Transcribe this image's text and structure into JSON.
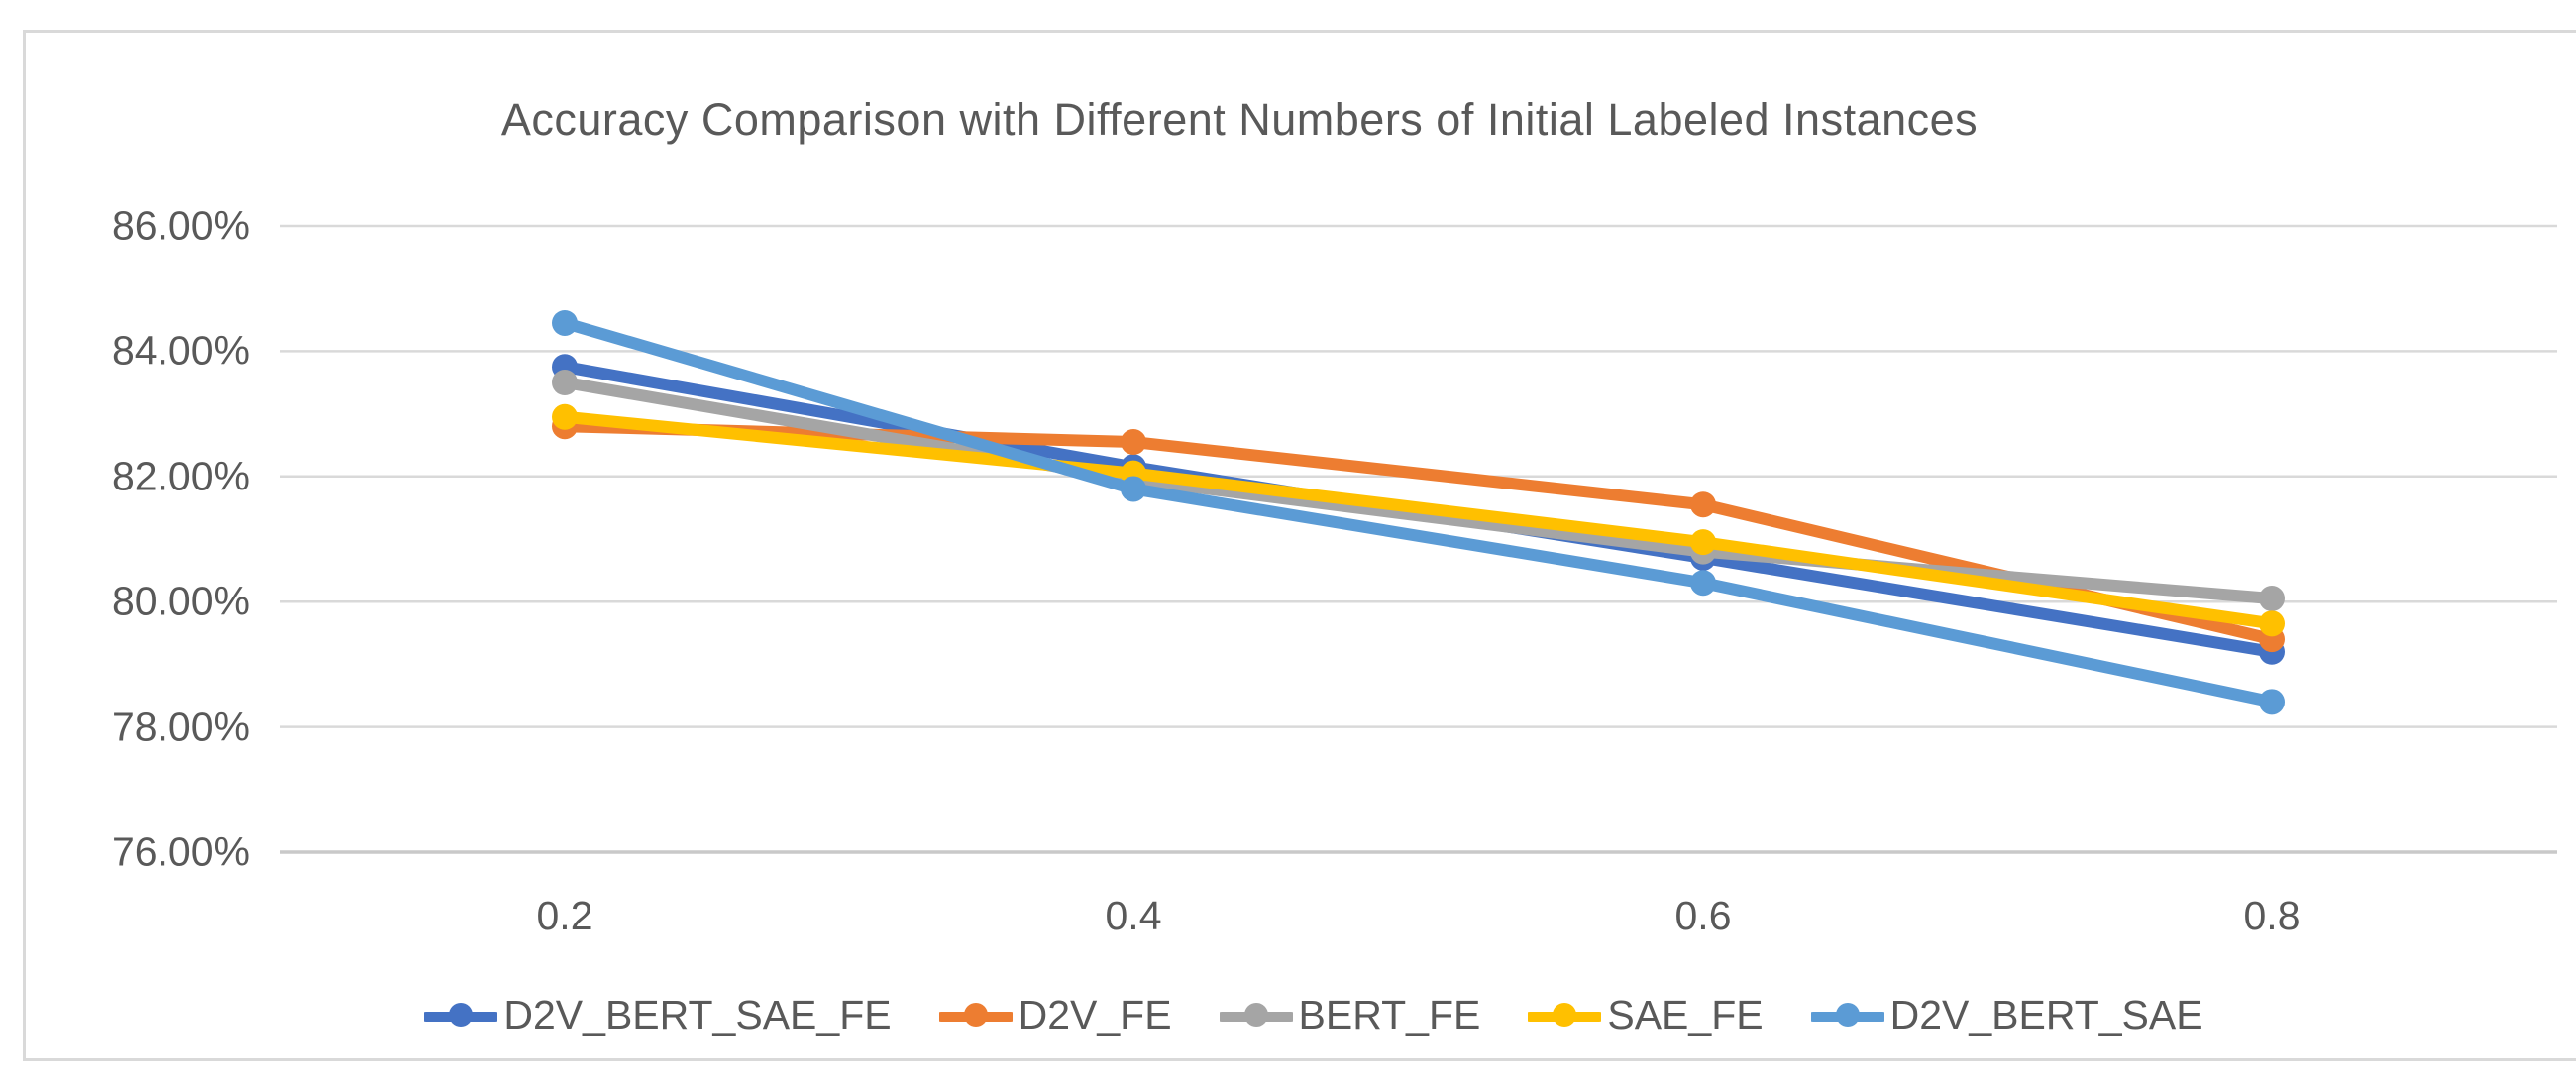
{
  "window": {
    "background_color": "#ffffff",
    "card_border_color": "#d9d9d9"
  },
  "chart_data": {
    "type": "line",
    "title": "Accuracy Comparison with Different Numbers of Initial Labeled Instances",
    "xlabel": "",
    "ylabel": "",
    "categories": [
      "0.2",
      "0.4",
      "0.6",
      "0.8"
    ],
    "series": [
      {
        "name": "D2V_BERT_SAE_FE",
        "color": "#4472C4",
        "values": [
          83.75,
          82.15,
          80.7,
          79.2
        ]
      },
      {
        "name": "D2V_FE",
        "color": "#ED7D31",
        "values": [
          82.8,
          82.55,
          81.55,
          79.4
        ]
      },
      {
        "name": "BERT_FE",
        "color": "#A5A5A5",
        "values": [
          83.5,
          81.95,
          80.8,
          80.05
        ]
      },
      {
        "name": "SAE_FE",
        "color": "#FFC000",
        "values": [
          82.95,
          82.05,
          80.95,
          79.65
        ]
      },
      {
        "name": "D2V_BERT_SAE",
        "color": "#5B9BD5",
        "values": [
          84.45,
          81.8,
          80.3,
          78.4
        ]
      }
    ],
    "ylim": [
      76,
      86
    ],
    "ytick_step": 2,
    "ytick_labels_top_to_bottom": [
      "86.00%",
      "84.00%",
      "82.00%",
      "80.00%",
      "78.00%",
      "76.00%"
    ],
    "grid": true,
    "legend_position": "bottom"
  },
  "styles": {
    "text_color": "#595959",
    "gridline_color": "#d9d9d9",
    "axis_line_color": "#c9c9c9"
  }
}
